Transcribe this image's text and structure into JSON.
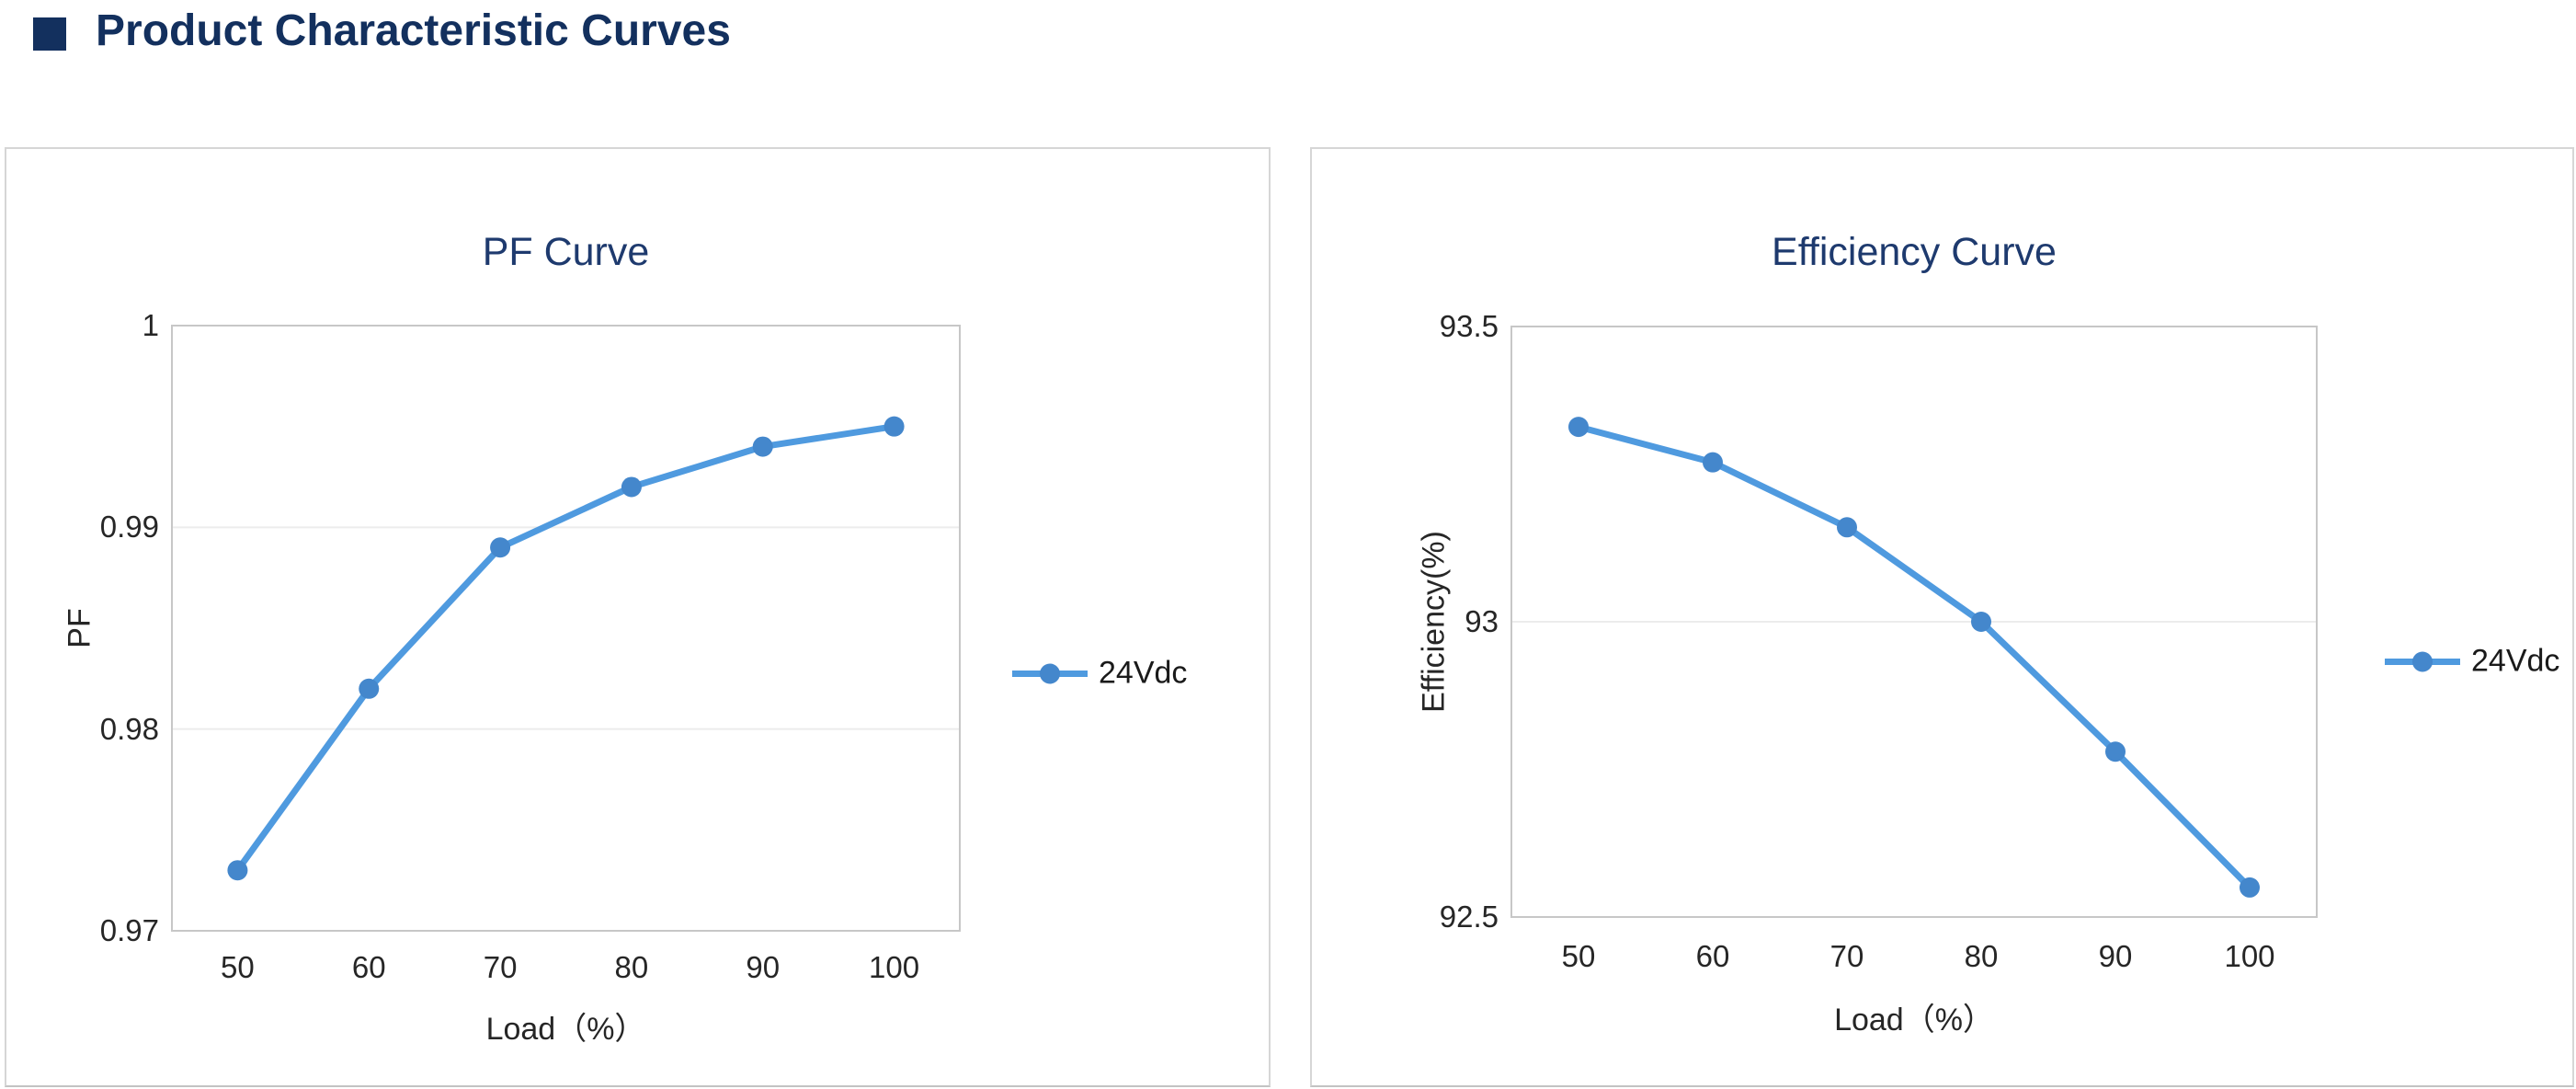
{
  "header": {
    "title": "Product Characteristic Curves"
  },
  "colors": {
    "heading": "#13305e",
    "chart_title": "#1e3a6e",
    "series_line": "#4f9adf",
    "series_marker": "#4487cc",
    "gridline": "#ececec",
    "plot_border": "#c7c7c7",
    "tick_text": "#262626"
  },
  "chart_data": [
    {
      "type": "line",
      "title": "PF Curve",
      "xlabel": "Load（%）",
      "ylabel": "PF",
      "legend_position": "right",
      "grid": true,
      "series": [
        {
          "name": "24Vdc",
          "values": [
            0.973,
            0.982,
            0.989,
            0.992,
            0.994,
            0.995
          ]
        }
      ],
      "categories": [
        "50",
        "60",
        "70",
        "80",
        "90",
        "100"
      ],
      "ylim": [
        0.97,
        1
      ],
      "y_ticks": [
        1,
        0.99,
        0.98,
        0.97
      ],
      "y_tick_labels": [
        "1",
        "0.99",
        "0.98",
        "0.97"
      ]
    },
    {
      "type": "line",
      "title": "Efficiency Curve",
      "xlabel": "Load（%）",
      "ylabel": "Efficiency(%)",
      "legend_position": "right",
      "grid": true,
      "series": [
        {
          "name": "24Vdc",
          "values": [
            93.33,
            93.27,
            93.16,
            93.0,
            92.78,
            92.55
          ]
        }
      ],
      "categories": [
        "50",
        "60",
        "70",
        "80",
        "90",
        "100"
      ],
      "ylim": [
        92.5,
        93.5
      ],
      "y_ticks": [
        93.5,
        93,
        92.5
      ],
      "y_tick_labels": [
        "93.5",
        "93",
        "92.5"
      ]
    }
  ]
}
